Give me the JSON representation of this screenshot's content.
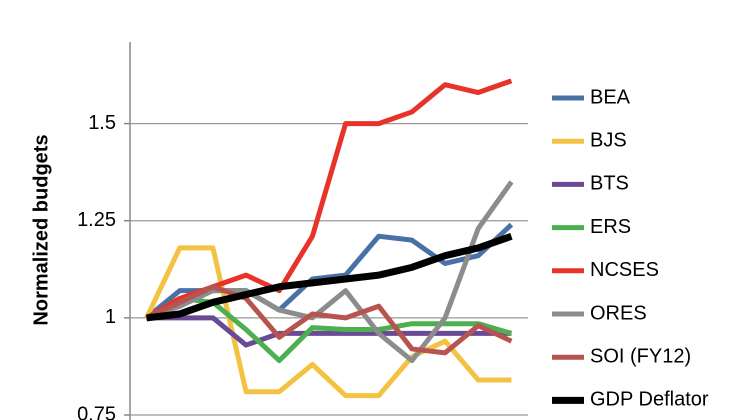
{
  "chart_data": {
    "type": "line",
    "y_label": "Normalized budgets",
    "categories": [
      null,
      null,
      null,
      null,
      null,
      null,
      null,
      null,
      null,
      null,
      null,
      null
    ],
    "ylim": [
      0.75,
      1.71
    ],
    "yticks": [
      0.75,
      1,
      1.25,
      1.5
    ],
    "grid": true,
    "legend": "right",
    "series": [
      {
        "name": "BEA",
        "color": "#4a70a8",
        "values": [
          1,
          1.07,
          1.07,
          1.07,
          1.02,
          1.1,
          1.11,
          1.21,
          1.2,
          1.14,
          1.16,
          1.24
        ]
      },
      {
        "name": "BJS",
        "color": "#f4c242",
        "values": [
          1,
          1.18,
          1.18,
          0.81,
          0.81,
          0.88,
          0.8,
          0.8,
          0.9,
          0.94,
          0.84,
          0.84
        ]
      },
      {
        "name": "BTS",
        "color": "#6a4a94",
        "values": [
          1,
          1.0,
          1.0,
          0.93,
          0.96,
          0.96,
          0.96,
          0.96,
          0.96,
          0.96,
          0.96,
          0.96
        ]
      },
      {
        "name": "ERS",
        "color": "#4caf50",
        "values": [
          1,
          1.05,
          1.04,
          0.97,
          0.89,
          0.975,
          0.97,
          0.97,
          0.985,
          0.985,
          0.985,
          0.96
        ]
      },
      {
        "name": "NCSES",
        "color": "#e8332a",
        "values": [
          1,
          1.05,
          1.08,
          1.11,
          1.07,
          1.21,
          1.5,
          1.5,
          1.53,
          1.6,
          1.58,
          1.61
        ]
      },
      {
        "name": "ORES",
        "color": "#8c8c8c",
        "values": [
          1,
          1.03,
          1.07,
          1.07,
          1.02,
          1.0,
          1.07,
          0.96,
          0.89,
          1.0,
          1.23,
          1.35
        ]
      },
      {
        "name": "SOI (FY12)",
        "color": "#b85450",
        "values": [
          1,
          1.04,
          1.08,
          1.05,
          0.95,
          1.01,
          1.0,
          1.03,
          0.92,
          0.91,
          0.98,
          0.94
        ]
      },
      {
        "name": "GDP Deflator",
        "color": "#000000",
        "values": [
          1,
          1.01,
          1.04,
          1.06,
          1.08,
          1.09,
          1.1,
          1.11,
          1.13,
          1.16,
          1.18,
          1.21
        ]
      }
    ]
  }
}
